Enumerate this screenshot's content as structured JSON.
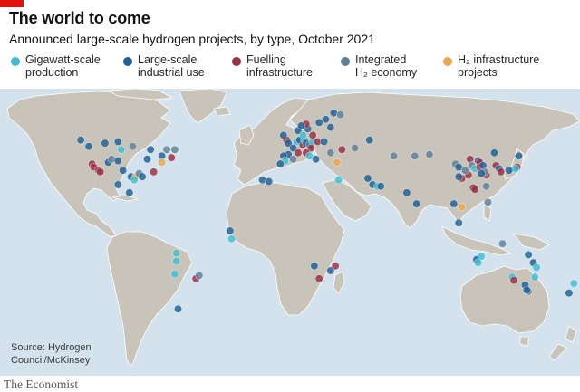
{
  "title": "The world to come",
  "subtitle": "Announced large-scale hydrogen projects, by type, October 2021",
  "legend": [
    {
      "key": "gigawatt",
      "line1": "Gigawatt-scale",
      "line2": "production",
      "color": "#3ebfd1"
    },
    {
      "key": "industrial",
      "line1": "Large-scale",
      "line2": "industrial use",
      "color": "#1f5f95"
    },
    {
      "key": "fuelling",
      "line1": "Fuelling",
      "line2": "infrastructure",
      "color": "#9a2f45"
    },
    {
      "key": "integrated",
      "line1": "Integrated",
      "line2": "H₂ economy",
      "color": "#5f7f99"
    },
    {
      "key": "infrastructure",
      "line1": "H₂ infrastructure",
      "line2": "projects",
      "color": "#e9a84a"
    }
  ],
  "source": "Source: Hydrogen Council/McKinsey",
  "brand": "The Economist",
  "colors": {
    "ocean": "#d3e2ec",
    "land": "#c9c4b9",
    "accent": "#e3120b"
  },
  "projects": [
    {
      "type": "industrial",
      "lon": -129,
      "lat": 53
    },
    {
      "type": "industrial",
      "lon": -124,
      "lat": 49
    },
    {
      "type": "industrial",
      "lon": -114,
      "lat": 51
    },
    {
      "type": "gigawatt",
      "lon": -104,
      "lat": 47
    },
    {
      "type": "industrial",
      "lon": -106,
      "lat": 52
    },
    {
      "type": "integrated",
      "lon": -97,
      "lat": 49
    },
    {
      "type": "industrial",
      "lon": -86,
      "lat": 47
    },
    {
      "type": "integrated",
      "lon": -76,
      "lat": 47
    },
    {
      "type": "integrated",
      "lon": -71,
      "lat": 47
    },
    {
      "type": "fuelling",
      "lon": -73,
      "lat": 42
    },
    {
      "type": "industrial",
      "lon": -79,
      "lat": 43
    },
    {
      "type": "infrastructure",
      "lon": -79,
      "lat": 39
    },
    {
      "type": "fuelling",
      "lon": -122,
      "lat": 38
    },
    {
      "type": "fuelling",
      "lon": -121,
      "lat": 36
    },
    {
      "type": "fuelling",
      "lon": -118,
      "lat": 34
    },
    {
      "type": "fuelling",
      "lon": -117,
      "lat": 33
    },
    {
      "type": "industrial",
      "lon": -112,
      "lat": 39
    },
    {
      "type": "integrated",
      "lon": -110,
      "lat": 41
    },
    {
      "type": "industrial",
      "lon": -106,
      "lat": 40
    },
    {
      "type": "industrial",
      "lon": -103,
      "lat": 34
    },
    {
      "type": "industrial",
      "lon": -98,
      "lat": 30
    },
    {
      "type": "infrastructure",
      "lon": -95,
      "lat": 30
    },
    {
      "type": "gigawatt",
      "lon": -96,
      "lat": 28
    },
    {
      "type": "integrated",
      "lon": -93,
      "lat": 32
    },
    {
      "type": "industrial",
      "lon": -91,
      "lat": 30
    },
    {
      "type": "fuelling",
      "lon": -84,
      "lat": 33
    },
    {
      "type": "industrial",
      "lon": -88,
      "lat": 41
    },
    {
      "type": "industrial",
      "lon": -99,
      "lat": 20
    },
    {
      "type": "industrial",
      "lon": -106,
      "lat": 25
    },
    {
      "type": "industrial",
      "lon": -37,
      "lat": -4
    },
    {
      "type": "gigawatt",
      "lon": -36,
      "lat": -9
    },
    {
      "type": "gigawatt",
      "lon": -70,
      "lat": -18
    },
    {
      "type": "gigawatt",
      "lon": -70,
      "lat": -23
    },
    {
      "type": "fuelling",
      "lon": -58,
      "lat": -34
    },
    {
      "type": "integrated",
      "lon": -56,
      "lat": -32
    },
    {
      "type": "gigawatt",
      "lon": -71,
      "lat": -31
    },
    {
      "type": "industrial",
      "lon": -69,
      "lat": -53
    },
    {
      "type": "fuelling",
      "lon": -2,
      "lat": 53
    },
    {
      "type": "industrial",
      "lon": -4,
      "lat": 56
    },
    {
      "type": "industrial",
      "lon": -1,
      "lat": 51
    },
    {
      "type": "gigawatt",
      "lon": 4,
      "lat": 52
    },
    {
      "type": "industrial",
      "lon": 6,
      "lat": 53
    },
    {
      "type": "fuelling",
      "lon": 8,
      "lat": 50
    },
    {
      "type": "gigawatt",
      "lon": 9,
      "lat": 53
    },
    {
      "type": "industrial",
      "lon": 10,
      "lat": 51
    },
    {
      "type": "integrated",
      "lon": 12,
      "lat": 50
    },
    {
      "type": "gigawatt",
      "lon": 14,
      "lat": 52
    },
    {
      "type": "fuelling",
      "lon": 13,
      "lat": 48
    },
    {
      "type": "industrial",
      "lon": 2,
      "lat": 48
    },
    {
      "type": "fuelling",
      "lon": 5,
      "lat": 45
    },
    {
      "type": "industrial",
      "lon": -1,
      "lat": 44
    },
    {
      "type": "industrial",
      "lon": -4,
      "lat": 43
    },
    {
      "type": "gigawatt",
      "lon": -3,
      "lat": 40
    },
    {
      "type": "industrial",
      "lon": -6,
      "lat": 38
    },
    {
      "type": "integrated",
      "lon": 2,
      "lat": 41
    },
    {
      "type": "fuelling",
      "lon": 10,
      "lat": 45
    },
    {
      "type": "gigawatt",
      "lon": 12,
      "lat": 43
    },
    {
      "type": "industrial",
      "lon": 16,
      "lat": 41
    },
    {
      "type": "fuelling",
      "lon": 17,
      "lat": 52
    },
    {
      "type": "industrial",
      "lon": 21,
      "lat": 52
    },
    {
      "type": "integrated",
      "lon": 25,
      "lat": 45
    },
    {
      "type": "industrial",
      "lon": 11,
      "lat": 60
    },
    {
      "type": "fuelling",
      "lon": 10,
      "lat": 63
    },
    {
      "type": "industrial",
      "lon": 18,
      "lat": 64
    },
    {
      "type": "industrial",
      "lon": 22,
      "lat": 66
    },
    {
      "type": "industrial",
      "lon": 25,
      "lat": 61
    },
    {
      "type": "fuelling",
      "lon": 14,
      "lat": 56
    },
    {
      "type": "industrial",
      "lon": 5,
      "lat": 59
    },
    {
      "type": "industrial",
      "lon": 7,
      "lat": 62
    },
    {
      "type": "gigawatt",
      "lon": 8,
      "lat": 56
    },
    {
      "type": "industrial",
      "lon": 27,
      "lat": 70
    },
    {
      "type": "integrated",
      "lon": 31,
      "lat": 69
    },
    {
      "type": "fuelling",
      "lon": 32,
      "lat": 47
    },
    {
      "type": "infrastructure",
      "lon": 29,
      "lat": 39
    },
    {
      "type": "integrated",
      "lon": 40,
      "lat": 48
    },
    {
      "type": "industrial",
      "lon": 49,
      "lat": 53
    },
    {
      "type": "industrial",
      "lon": -17,
      "lat": 28
    },
    {
      "type": "industrial",
      "lon": -13,
      "lat": 27
    },
    {
      "type": "gigawatt",
      "lon": 30,
      "lat": 28
    },
    {
      "type": "industrial",
      "lon": 48,
      "lat": 29
    },
    {
      "type": "industrial",
      "lon": 51,
      "lat": 25
    },
    {
      "type": "gigawatt",
      "lon": 54,
      "lat": 24
    },
    {
      "type": "industrial",
      "lon": 56,
      "lat": 24
    },
    {
      "type": "industrial",
      "lon": 72,
      "lat": 20
    },
    {
      "type": "integrated",
      "lon": 64,
      "lat": 43
    },
    {
      "type": "integrated",
      "lon": 77,
      "lat": 43
    },
    {
      "type": "fuelling",
      "lon": 28,
      "lat": -26
    },
    {
      "type": "industrial",
      "lon": 25,
      "lat": -29
    },
    {
      "type": "fuelling",
      "lon": 18,
      "lat": -34
    },
    {
      "type": "industrial",
      "lon": 15,
      "lat": -26
    },
    {
      "type": "integrated",
      "lon": 86,
      "lat": 44
    },
    {
      "type": "integrated",
      "lon": 102,
      "lat": 38
    },
    {
      "type": "industrial",
      "lon": 104,
      "lat": 36
    },
    {
      "type": "fuelling",
      "lon": 111,
      "lat": 41
    },
    {
      "type": "industrial",
      "lon": 116,
      "lat": 40
    },
    {
      "type": "fuelling",
      "lon": 117,
      "lat": 39
    },
    {
      "type": "integrated",
      "lon": 112,
      "lat": 37
    },
    {
      "type": "gigawatt",
      "lon": 114,
      "lat": 35
    },
    {
      "type": "fuelling",
      "lon": 117,
      "lat": 36
    },
    {
      "type": "industrial",
      "lon": 119,
      "lat": 37
    },
    {
      "type": "fuelling",
      "lon": 121,
      "lat": 31
    },
    {
      "type": "integrated",
      "lon": 120,
      "lat": 33
    },
    {
      "type": "industrial",
      "lon": 118,
      "lat": 32
    },
    {
      "type": "fuelling",
      "lon": 113,
      "lat": 23
    },
    {
      "type": "fuelling",
      "lon": 114,
      "lat": 22
    },
    {
      "type": "fuelling",
      "lon": 106,
      "lat": 29
    },
    {
      "type": "industrial",
      "lon": 104,
      "lat": 30
    },
    {
      "type": "fuelling",
      "lon": 110,
      "lat": 31
    },
    {
      "type": "integrated",
      "lon": 108,
      "lat": 34
    },
    {
      "type": "industrial",
      "lon": 126,
      "lat": 45
    },
    {
      "type": "fuelling",
      "lon": 127,
      "lat": 37
    },
    {
      "type": "industrial",
      "lon": 129,
      "lat": 35
    },
    {
      "type": "fuelling",
      "lon": 140,
      "lat": 36
    },
    {
      "type": "gigawatt",
      "lon": 139,
      "lat": 35
    },
    {
      "type": "industrial",
      "lon": 135,
      "lat": 34
    },
    {
      "type": "fuelling",
      "lon": 130,
      "lat": 33
    },
    {
      "type": "industrial",
      "lon": 141,
      "lat": 43
    },
    {
      "type": "integrated",
      "lon": 121,
      "lat": 24
    },
    {
      "type": "industrial",
      "lon": 104,
      "lat": 1
    },
    {
      "type": "industrial",
      "lon": 101,
      "lat": 13
    },
    {
      "type": "infrastructure",
      "lon": 106,
      "lat": 11
    },
    {
      "type": "integrated",
      "lon": 122,
      "lat": 14
    },
    {
      "type": "industrial",
      "lon": 78,
      "lat": 13
    },
    {
      "type": "industrial",
      "lon": 115,
      "lat": -22
    },
    {
      "type": "gigawatt",
      "lon": 118,
      "lat": -20
    },
    {
      "type": "gigawatt",
      "lon": 116,
      "lat": -24
    },
    {
      "type": "integrated",
      "lon": 131,
      "lat": -12
    },
    {
      "type": "gigawatt",
      "lon": 137,
      "lat": -33
    },
    {
      "type": "fuelling",
      "lon": 138,
      "lat": -35
    },
    {
      "type": "industrial",
      "lon": 145,
      "lat": -38
    },
    {
      "type": "gigawatt",
      "lon": 151,
      "lat": -33
    },
    {
      "type": "industrial",
      "lon": 150,
      "lat": -24
    },
    {
      "type": "gigawatt",
      "lon": 152,
      "lat": -27
    },
    {
      "type": "industrial",
      "lon": 147,
      "lat": -19
    },
    {
      "type": "integrated",
      "lon": 147,
      "lat": -42
    },
    {
      "type": "industrial",
      "lon": 146,
      "lat": -41
    },
    {
      "type": "gigawatt",
      "lon": 175,
      "lat": -37
    },
    {
      "type": "industrial",
      "lon": 172,
      "lat": -43
    }
  ]
}
